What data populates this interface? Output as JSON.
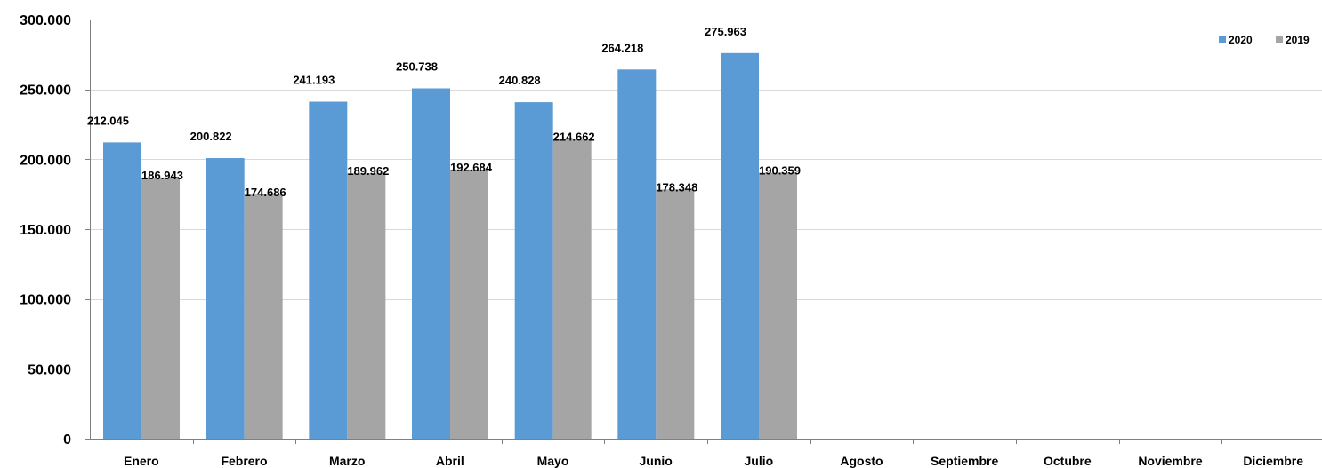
{
  "chart_data": {
    "type": "bar",
    "categories": [
      "Enero",
      "Febrero",
      "Marzo",
      "Abril",
      "Mayo",
      "Junio",
      "Julio",
      "Agosto",
      "Septiembre",
      "Octubre",
      "Noviembre",
      "Diciembre"
    ],
    "series": [
      {
        "name": "2020",
        "color": "#5b9bd5",
        "values": [
          212045,
          200822,
          241193,
          250738,
          240828,
          264218,
          275963,
          null,
          null,
          null,
          null,
          null
        ],
        "labels": [
          "212.045",
          "200.822",
          "241.193",
          "250.738",
          "240.828",
          "264.218",
          "275.963",
          "",
          "",
          "",
          "",
          ""
        ]
      },
      {
        "name": "2019",
        "color": "#a5a5a5",
        "values": [
          186943,
          174686,
          189962,
          192684,
          214662,
          178348,
          190359,
          null,
          null,
          null,
          null,
          null
        ],
        "labels": [
          "186.943",
          "174.686",
          "189.962",
          "192.684",
          "214.662",
          "178.348",
          "190.359",
          "",
          "",
          "",
          "",
          ""
        ]
      }
    ],
    "ylim": [
      0,
      300000
    ],
    "yticks": [
      0,
      50000,
      100000,
      150000,
      200000,
      250000,
      300000
    ],
    "ytick_labels": [
      "0",
      "50.000",
      "100.000",
      "150.000",
      "200.000",
      "250.000",
      "300.000"
    ],
    "title": "",
    "xlabel": "",
    "ylabel": "",
    "grid": true,
    "legend_position": "top-right"
  }
}
